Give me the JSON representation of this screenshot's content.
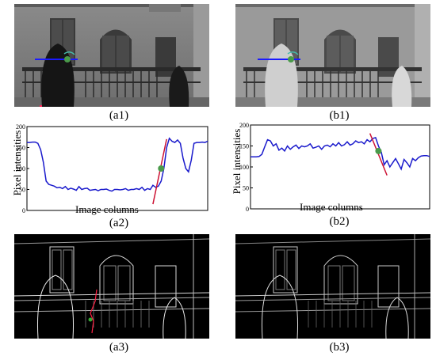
{
  "captions": {
    "a1": "(a1)",
    "b1": "(b1)",
    "a2": "(a2)",
    "b2": "(b2)",
    "a3": "(a3)",
    "b3": "(b3)"
  },
  "chart_data": [
    {
      "type": "line",
      "panel": "a2",
      "xlabel": "Image columns",
      "ylabel": "Pixel intensities",
      "ylim": [
        0,
        200
      ],
      "yticks": [
        "200",
        "150",
        "100",
        "50",
        "0"
      ],
      "grid": false,
      "series": [
        {
          "color": "#1a1acc",
          "values": [
            162,
            162,
            163,
            163,
            160,
            145,
            115,
            70,
            62,
            60,
            58,
            54,
            55,
            52,
            57,
            50,
            53,
            51,
            48,
            57,
            50,
            52,
            53,
            48,
            49,
            50,
            47,
            50,
            50,
            51,
            48,
            46,
            50,
            50,
            49,
            50,
            52,
            48,
            50,
            50,
            52,
            50,
            55,
            48,
            52,
            50,
            60,
            55,
            58,
            70,
            100,
            150,
            172,
            165,
            162,
            168,
            160,
            125,
            100,
            92,
            120,
            160,
            162,
            162,
            163,
            162,
            165
          ]
        }
      ],
      "marker_point": {
        "x": 49,
        "y": 100
      },
      "tangent_line": {
        "x1": 46,
        "y1": 15,
        "x2": 51,
        "y2": 170
      }
    },
    {
      "type": "line",
      "panel": "b2",
      "xlabel": "Image columns",
      "ylabel": "Pixel intensities",
      "ylim": [
        0,
        200
      ],
      "yticks": [
        "200",
        "150",
        "100",
        "50",
        "0"
      ],
      "grid": false,
      "series": [
        {
          "color": "#1a1acc",
          "values": [
            124,
            124,
            124,
            125,
            130,
            148,
            165,
            162,
            150,
            155,
            140,
            145,
            138,
            150,
            142,
            148,
            152,
            144,
            150,
            148,
            150,
            155,
            145,
            147,
            150,
            142,
            150,
            152,
            148,
            155,
            150,
            158,
            150,
            153,
            160,
            152,
            155,
            162,
            158,
            160,
            155,
            165,
            160,
            168,
            170,
            150,
            135,
            105,
            115,
            100,
            110,
            120,
            108,
            95,
            118,
            110,
            100,
            120,
            115,
            122,
            126,
            127,
            127,
            125
          ]
        }
      ],
      "marker_point": {
        "x": 45,
        "y": 138
      },
      "tangent_line": {
        "x1": 42,
        "y1": 180,
        "x2": 48,
        "y2": 80
      }
    }
  ]
}
